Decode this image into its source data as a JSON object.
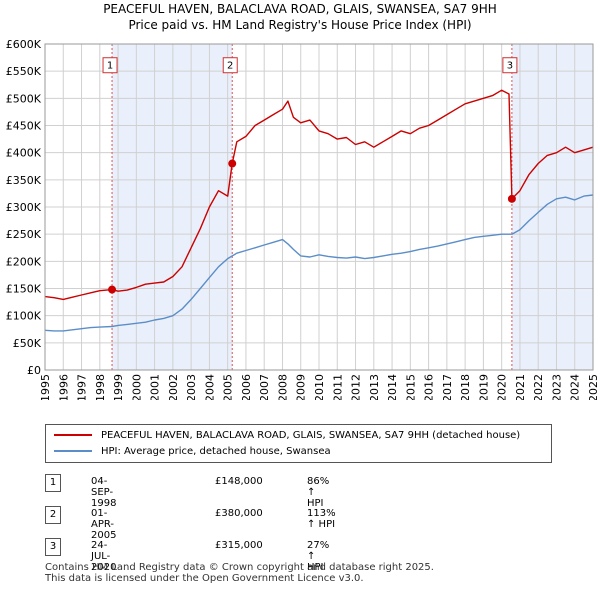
{
  "title_line1": "PEACEFUL HAVEN, BALACLAVA ROAD, GLAIS, SWANSEA, SA7 9HH",
  "title_line2": "Price paid vs. HM Land Registry's House Price Index (HPI)",
  "colors": {
    "property": "#cc0000",
    "hpi": "#5b8ec9",
    "shade": "#eaf0fb",
    "grid": "#d0d0d0",
    "vline": "#e05050"
  },
  "legend": {
    "property_label": "PEACEFUL HAVEN, BALACLAVA ROAD, GLAIS, SWANSEA, SA7 9HH (detached house)",
    "hpi_label": "HPI: Average price, detached house, Swansea"
  },
  "transactions": [
    {
      "num": "1",
      "date": "04-SEP-1998",
      "price": "£148,000",
      "hpi": "86% ↑ HPI"
    },
    {
      "num": "2",
      "date": "01-APR-2005",
      "price": "£380,000",
      "hpi": "113% ↑ HPI"
    },
    {
      "num": "3",
      "date": "24-JUL-2020",
      "price": "£315,000",
      "hpi": "27% ↑ HPI"
    }
  ],
  "footer": {
    "line1": "Contains HM Land Registry data © Crown copyright and database right 2025.",
    "line2": "This data is licensed under the Open Government Licence v3.0."
  },
  "chart_data": {
    "type": "line",
    "title": "PEACEFUL HAVEN, BALACLAVA ROAD, GLAIS, SWANSEA, SA7 9HH — Price paid vs. HM Land Registry's House Price Index (HPI)",
    "xlabel": "",
    "ylabel": "",
    "xlim": [
      1995,
      2025
    ],
    "ylim": [
      0,
      600000
    ],
    "x_ticks": [
      1995,
      1996,
      1997,
      1998,
      1999,
      2000,
      2001,
      2002,
      2003,
      2004,
      2005,
      2006,
      2007,
      2008,
      2009,
      2010,
      2011,
      2012,
      2013,
      2014,
      2015,
      2016,
      2017,
      2018,
      2019,
      2020,
      2021,
      2022,
      2023,
      2024,
      2025
    ],
    "y_ticks": [
      {
        "value": 0,
        "label": "£0"
      },
      {
        "value": 50000,
        "label": "£50K"
      },
      {
        "value": 100000,
        "label": "£100K"
      },
      {
        "value": 150000,
        "label": "£150K"
      },
      {
        "value": 200000,
        "label": "£200K"
      },
      {
        "value": 250000,
        "label": "£250K"
      },
      {
        "value": 300000,
        "label": "£300K"
      },
      {
        "value": 350000,
        "label": "£350K"
      },
      {
        "value": 400000,
        "label": "£400K"
      },
      {
        "value": 450000,
        "label": "£450K"
      },
      {
        "value": 500000,
        "label": "£500K"
      },
      {
        "value": 550000,
        "label": "£550K"
      },
      {
        "value": 600000,
        "label": "£600K"
      }
    ],
    "grid": true,
    "shaded_regions": [
      [
        1998.67,
        2005.25
      ],
      [
        2020.56,
        2025
      ]
    ],
    "series": [
      {
        "name": "PEACEFUL HAVEN, BALACLAVA ROAD, GLAIS, SWANSEA, SA7 9HH (detached house)",
        "x": [
          1995,
          1995.5,
          1996,
          1996.5,
          1997,
          1997.5,
          1998,
          1998.67,
          1999,
          1999.5,
          2000,
          2000.5,
          2001,
          2001.5,
          2002,
          2002.5,
          2003,
          2003.5,
          2004,
          2004.5,
          2005,
          2005.25,
          2005.5,
          2006,
          2006.5,
          2007,
          2007.5,
          2008,
          2008.3,
          2008.6,
          2009,
          2009.5,
          2010,
          2010.5,
          2011,
          2011.5,
          2012,
          2012.5,
          2013,
          2013.5,
          2014,
          2014.5,
          2015,
          2015.5,
          2016,
          2016.5,
          2017,
          2017.5,
          2018,
          2018.5,
          2019,
          2019.5,
          2020,
          2020.4,
          2020.56,
          2021,
          2021.5,
          2022,
          2022.5,
          2023,
          2023.5,
          2024,
          2024.5,
          2025
        ],
        "values": [
          135000,
          133000,
          130000,
          134000,
          138000,
          142000,
          146000,
          148000,
          145000,
          147000,
          152000,
          158000,
          160000,
          162000,
          172000,
          190000,
          225000,
          260000,
          300000,
          330000,
          320000,
          380000,
          420000,
          430000,
          450000,
          460000,
          470000,
          480000,
          495000,
          465000,
          455000,
          460000,
          440000,
          435000,
          425000,
          428000,
          415000,
          420000,
          410000,
          420000,
          430000,
          440000,
          435000,
          445000,
          450000,
          460000,
          470000,
          480000,
          490000,
          495000,
          500000,
          505000,
          515000,
          508000,
          315000,
          330000,
          360000,
          380000,
          395000,
          400000,
          410000,
          400000,
          405000,
          410000
        ]
      },
      {
        "name": "HPI: Average price, detached house, Swansea",
        "x": [
          1995,
          1995.5,
          1996,
          1996.5,
          1997,
          1997.5,
          1998,
          1998.67,
          1999,
          1999.5,
          2000,
          2000.5,
          2001,
          2001.5,
          2002,
          2002.5,
          2003,
          2003.5,
          2004,
          2004.5,
          2005,
          2005.5,
          2006,
          2006.5,
          2007,
          2007.5,
          2008,
          2008.3,
          2008.6,
          2009,
          2009.5,
          2010,
          2010.5,
          2011,
          2011.5,
          2012,
          2012.5,
          2013,
          2013.5,
          2014,
          2014.5,
          2015,
          2015.5,
          2016,
          2016.5,
          2017,
          2017.5,
          2018,
          2018.5,
          2019,
          2019.5,
          2020,
          2020.56,
          2021,
          2021.5,
          2022,
          2022.5,
          2023,
          2023.5,
          2024,
          2024.5,
          2025
        ],
        "values": [
          73000,
          72000,
          72000,
          74000,
          76000,
          78000,
          79000,
          80000,
          82000,
          84000,
          86000,
          88000,
          92000,
          95000,
          100000,
          112000,
          130000,
          150000,
          170000,
          190000,
          205000,
          215000,
          220000,
          225000,
          230000,
          235000,
          240000,
          232000,
          222000,
          210000,
          208000,
          212000,
          209000,
          207000,
          206000,
          208000,
          205000,
          207000,
          210000,
          213000,
          215000,
          218000,
          222000,
          225000,
          228000,
          232000,
          236000,
          240000,
          244000,
          246000,
          248000,
          250000,
          250000,
          258000,
          275000,
          290000,
          305000,
          315000,
          318000,
          313000,
          320000,
          322000
        ]
      }
    ],
    "markers": [
      {
        "label": "1",
        "x": 1998.67,
        "y": 148000
      },
      {
        "label": "2",
        "x": 2005.25,
        "y": 380000
      },
      {
        "label": "3",
        "x": 2020.56,
        "y": 315000
      }
    ]
  }
}
